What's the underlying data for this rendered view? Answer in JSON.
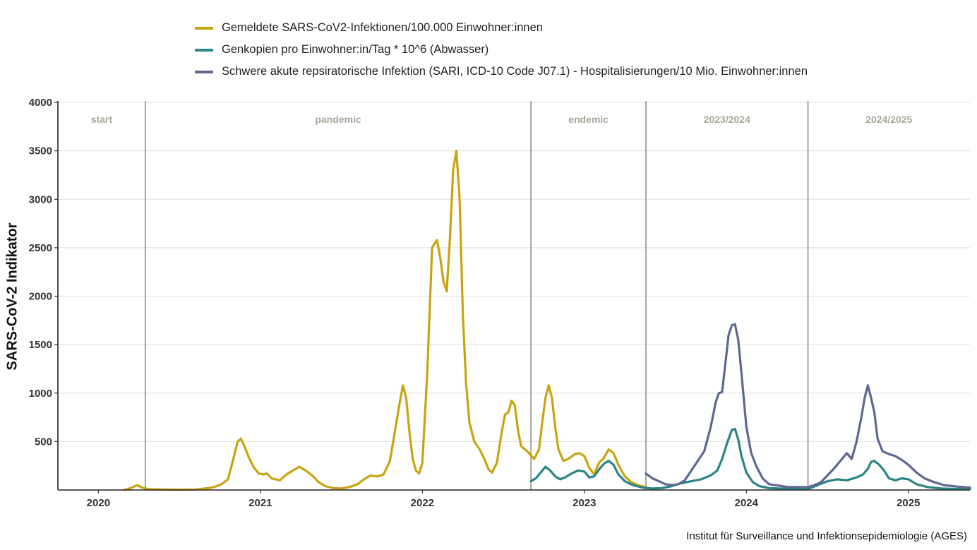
{
  "chart_data": {
    "type": "line",
    "ylabel": "SARS-CoV-2 Indikator",
    "ylim": [
      0,
      4000
    ],
    "yticks": [
      500,
      1000,
      1500,
      2000,
      2500,
      3000,
      3500,
      4000
    ],
    "xticks": [
      {
        "label": "2020",
        "x": 2020.0
      },
      {
        "label": "2021",
        "x": 2021.0
      },
      {
        "label": "2022",
        "x": 2022.0
      },
      {
        "label": "2023",
        "x": 2023.0
      },
      {
        "label": "2024",
        "x": 2024.0
      },
      {
        "label": "2025",
        "x": 2025.0
      }
    ],
    "xlim": [
      2019.75,
      2025.38
    ],
    "grid": true,
    "legend_position": "top",
    "phases": [
      {
        "label": "start",
        "start": 2019.75,
        "end": 2020.29
      },
      {
        "label": "pandemic",
        "start": 2020.29,
        "end": 2022.67
      },
      {
        "label": "endemic",
        "start": 2022.67,
        "end": 2023.38
      },
      {
        "label": "2023/2024",
        "start": 2023.38,
        "end": 2024.38
      },
      {
        "label": "2024/2025",
        "start": 2024.38,
        "end": 2025.38
      }
    ],
    "phase_boundaries": [
      2020.29,
      2022.67,
      2023.38,
      2024.38
    ],
    "series": [
      {
        "name": "Gemeldete SARS-CoV2-Infektionen/100.000 Einwohner:innen",
        "color": "#C9A411",
        "points": [
          [
            2020.16,
            0
          ],
          [
            2020.2,
            20
          ],
          [
            2020.24,
            50
          ],
          [
            2020.27,
            25
          ],
          [
            2020.31,
            8
          ],
          [
            2020.4,
            5
          ],
          [
            2020.5,
            3
          ],
          [
            2020.6,
            5
          ],
          [
            2020.66,
            15
          ],
          [
            2020.7,
            25
          ],
          [
            2020.73,
            40
          ],
          [
            2020.76,
            60
          ],
          [
            2020.8,
            110
          ],
          [
            2020.83,
            300
          ],
          [
            2020.86,
            500
          ],
          [
            2020.88,
            530
          ],
          [
            2020.9,
            460
          ],
          [
            2020.93,
            330
          ],
          [
            2020.96,
            230
          ],
          [
            2020.99,
            170
          ],
          [
            2021.02,
            160
          ],
          [
            2021.04,
            170
          ],
          [
            2021.07,
            120
          ],
          [
            2021.12,
            100
          ],
          [
            2021.16,
            160
          ],
          [
            2021.2,
            200
          ],
          [
            2021.24,
            240
          ],
          [
            2021.28,
            200
          ],
          [
            2021.32,
            150
          ],
          [
            2021.36,
            80
          ],
          [
            2021.4,
            40
          ],
          [
            2021.45,
            20
          ],
          [
            2021.5,
            15
          ],
          [
            2021.55,
            30
          ],
          [
            2021.6,
            60
          ],
          [
            2021.64,
            110
          ],
          [
            2021.68,
            150
          ],
          [
            2021.72,
            140
          ],
          [
            2021.76,
            160
          ],
          [
            2021.8,
            300
          ],
          [
            2021.83,
            600
          ],
          [
            2021.86,
            900
          ],
          [
            2021.88,
            1080
          ],
          [
            2021.9,
            950
          ],
          [
            2021.92,
            600
          ],
          [
            2021.94,
            320
          ],
          [
            2021.96,
            200
          ],
          [
            2021.98,
            170
          ],
          [
            2022.0,
            280
          ],
          [
            2022.03,
            1200
          ],
          [
            2022.06,
            2500
          ],
          [
            2022.09,
            2580
          ],
          [
            2022.11,
            2400
          ],
          [
            2022.13,
            2150
          ],
          [
            2022.15,
            2050
          ],
          [
            2022.17,
            2600
          ],
          [
            2022.19,
            3300
          ],
          [
            2022.21,
            3500
          ],
          [
            2022.23,
            3000
          ],
          [
            2022.25,
            1800
          ],
          [
            2022.27,
            1100
          ],
          [
            2022.29,
            700
          ],
          [
            2022.32,
            500
          ],
          [
            2022.35,
            430
          ],
          [
            2022.38,
            330
          ],
          [
            2022.41,
            210
          ],
          [
            2022.43,
            180
          ],
          [
            2022.46,
            280
          ],
          [
            2022.49,
            600
          ],
          [
            2022.51,
            780
          ],
          [
            2022.53,
            800
          ],
          [
            2022.55,
            920
          ],
          [
            2022.57,
            880
          ],
          [
            2022.59,
            620
          ],
          [
            2022.61,
            450
          ],
          [
            2022.64,
            410
          ],
          [
            2022.67,
            360
          ],
          [
            2022.69,
            320
          ],
          [
            2022.72,
            420
          ],
          [
            2022.74,
            700
          ],
          [
            2022.76,
            950
          ],
          [
            2022.78,
            1080
          ],
          [
            2022.8,
            950
          ],
          [
            2022.82,
            650
          ],
          [
            2022.84,
            420
          ],
          [
            2022.87,
            300
          ],
          [
            2022.9,
            320
          ],
          [
            2022.94,
            370
          ],
          [
            2022.97,
            380
          ],
          [
            2023.0,
            350
          ],
          [
            2023.03,
            230
          ],
          [
            2023.06,
            160
          ],
          [
            2023.09,
            280
          ],
          [
            2023.12,
            330
          ],
          [
            2023.15,
            420
          ],
          [
            2023.18,
            380
          ],
          [
            2023.21,
            260
          ],
          [
            2023.25,
            140
          ],
          [
            2023.29,
            80
          ],
          [
            2023.33,
            50
          ],
          [
            2023.38,
            30
          ]
        ]
      },
      {
        "name": "Genkopien pro Einwohner:in/Tag * 10^6 (Abwasser)",
        "color": "#2A8585",
        "points": [
          [
            2022.67,
            90
          ],
          [
            2022.7,
            120
          ],
          [
            2022.73,
            180
          ],
          [
            2022.76,
            240
          ],
          [
            2022.79,
            200
          ],
          [
            2022.82,
            140
          ],
          [
            2022.85,
            110
          ],
          [
            2022.88,
            130
          ],
          [
            2022.92,
            170
          ],
          [
            2022.96,
            200
          ],
          [
            2023.0,
            190
          ],
          [
            2023.03,
            130
          ],
          [
            2023.06,
            140
          ],
          [
            2023.09,
            210
          ],
          [
            2023.12,
            270
          ],
          [
            2023.15,
            300
          ],
          [
            2023.18,
            260
          ],
          [
            2023.21,
            160
          ],
          [
            2023.25,
            90
          ],
          [
            2023.3,
            50
          ],
          [
            2023.36,
            25
          ],
          [
            2023.42,
            15
          ],
          [
            2023.48,
            20
          ],
          [
            2023.54,
            40
          ],
          [
            2023.6,
            70
          ],
          [
            2023.66,
            90
          ],
          [
            2023.72,
            110
          ],
          [
            2023.78,
            150
          ],
          [
            2023.82,
            200
          ],
          [
            2023.85,
            320
          ],
          [
            2023.88,
            480
          ],
          [
            2023.91,
            620
          ],
          [
            2023.93,
            630
          ],
          [
            2023.95,
            520
          ],
          [
            2023.97,
            350
          ],
          [
            2024.0,
            180
          ],
          [
            2024.04,
            80
          ],
          [
            2024.08,
            40
          ],
          [
            2024.14,
            20
          ],
          [
            2024.2,
            15
          ],
          [
            2024.3,
            12
          ],
          [
            2024.38,
            10
          ],
          [
            2024.44,
            50
          ],
          [
            2024.5,
            90
          ],
          [
            2024.56,
            110
          ],
          [
            2024.62,
            100
          ],
          [
            2024.68,
            130
          ],
          [
            2024.72,
            160
          ],
          [
            2024.75,
            220
          ],
          [
            2024.77,
            290
          ],
          [
            2024.79,
            300
          ],
          [
            2024.82,
            260
          ],
          [
            2024.85,
            200
          ],
          [
            2024.88,
            120
          ],
          [
            2024.92,
            100
          ],
          [
            2024.96,
            120
          ],
          [
            2025.0,
            110
          ],
          [
            2025.05,
            60
          ],
          [
            2025.12,
            30
          ],
          [
            2025.2,
            15
          ],
          [
            2025.3,
            10
          ],
          [
            2025.38,
            8
          ]
        ]
      },
      {
        "name": "Schwere akute repsiratorische Infektion (SARI, ICD-10 Code J07.1) - Hospitalisierungen/10 Mio. Einwohner:innen",
        "color": "#5E6890",
        "points": [
          [
            2023.38,
            170
          ],
          [
            2023.42,
            120
          ],
          [
            2023.46,
            90
          ],
          [
            2023.5,
            60
          ],
          [
            2023.54,
            50
          ],
          [
            2023.58,
            60
          ],
          [
            2023.62,
            100
          ],
          [
            2023.66,
            200
          ],
          [
            2023.7,
            300
          ],
          [
            2023.74,
            400
          ],
          [
            2023.78,
            650
          ],
          [
            2023.81,
            900
          ],
          [
            2023.83,
            1000
          ],
          [
            2023.85,
            1010
          ],
          [
            2023.87,
            1300
          ],
          [
            2023.89,
            1600
          ],
          [
            2023.91,
            1700
          ],
          [
            2023.93,
            1710
          ],
          [
            2023.95,
            1550
          ],
          [
            2023.97,
            1200
          ],
          [
            2024.0,
            650
          ],
          [
            2024.03,
            380
          ],
          [
            2024.06,
            250
          ],
          [
            2024.1,
            120
          ],
          [
            2024.14,
            60
          ],
          [
            2024.2,
            45
          ],
          [
            2024.26,
            30
          ],
          [
            2024.32,
            30
          ],
          [
            2024.38,
            30
          ],
          [
            2024.42,
            50
          ],
          [
            2024.46,
            80
          ],
          [
            2024.5,
            150
          ],
          [
            2024.54,
            220
          ],
          [
            2024.58,
            300
          ],
          [
            2024.62,
            380
          ],
          [
            2024.65,
            320
          ],
          [
            2024.68,
            500
          ],
          [
            2024.71,
            750
          ],
          [
            2024.73,
            950
          ],
          [
            2024.75,
            1080
          ],
          [
            2024.77,
            950
          ],
          [
            2024.79,
            800
          ],
          [
            2024.81,
            530
          ],
          [
            2024.84,
            400
          ],
          [
            2024.88,
            370
          ],
          [
            2024.92,
            350
          ],
          [
            2024.96,
            310
          ],
          [
            2025.0,
            260
          ],
          [
            2025.05,
            180
          ],
          [
            2025.1,
            120
          ],
          [
            2025.16,
            80
          ],
          [
            2025.22,
            50
          ],
          [
            2025.3,
            35
          ],
          [
            2025.38,
            25
          ]
        ]
      }
    ]
  },
  "caption": "Institut für Surveillance und Infektionsepidemiologie (AGES)"
}
